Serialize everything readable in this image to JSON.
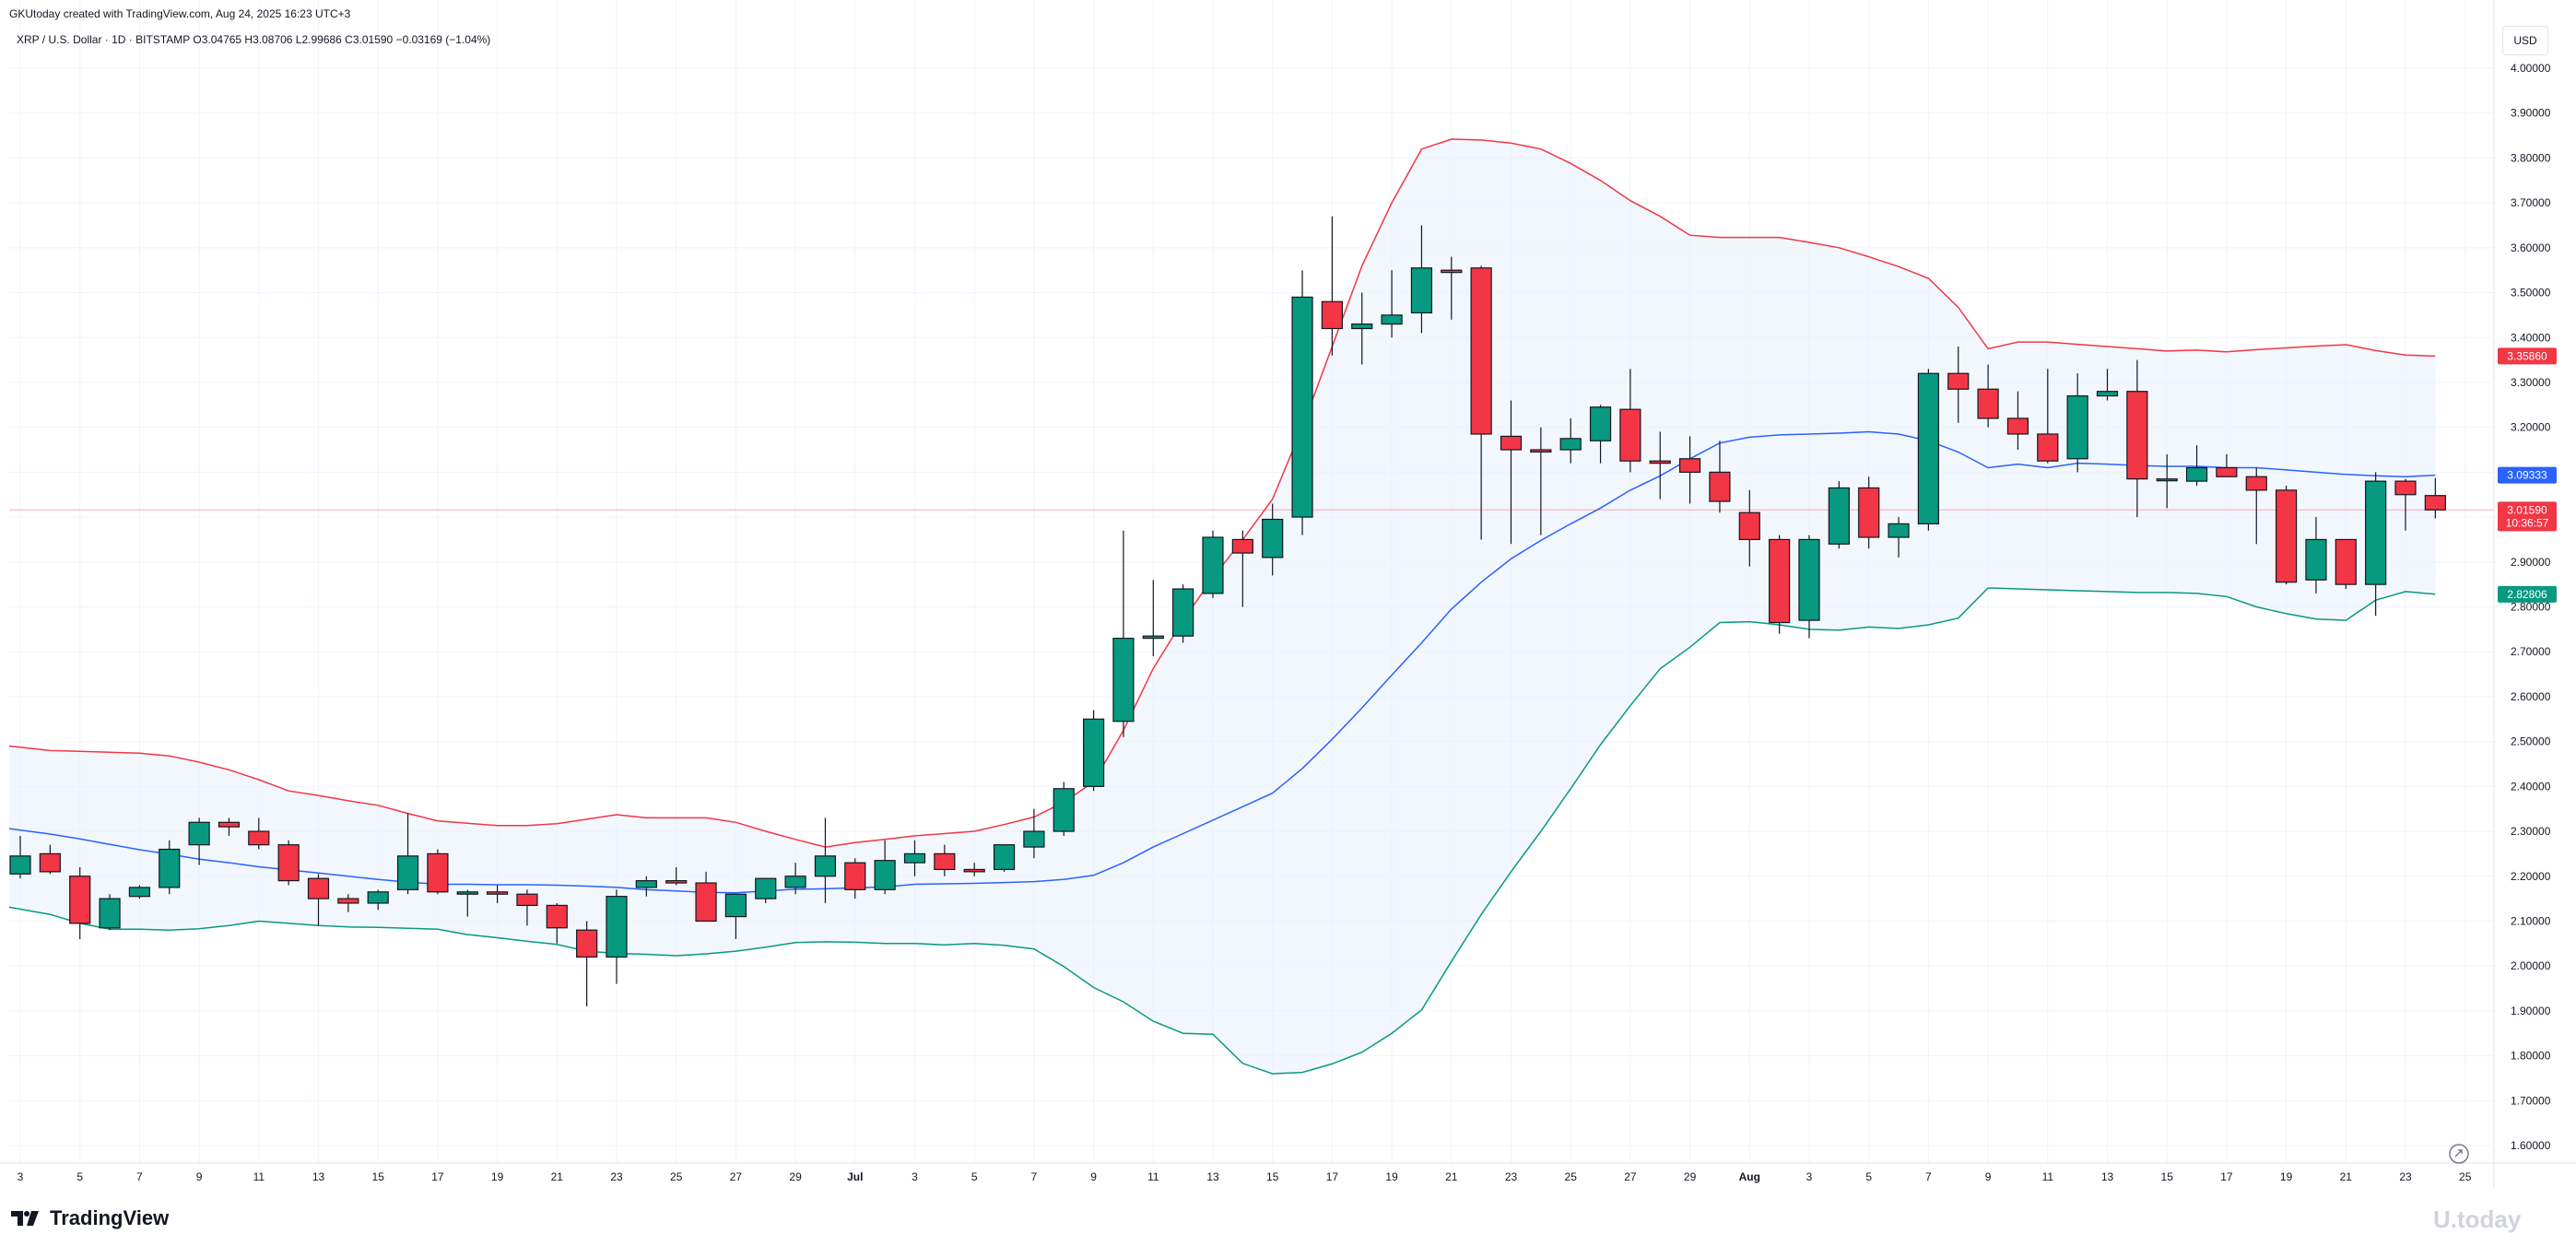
{
  "header": {
    "credit": "GKUtoday created with TradingView.com, Aug 24, 2025 16:23 UTC+3",
    "symbol_line": "XRP / U.S. Dollar · 1D · BITSTAMP   O3.04765  H3.08706  L2.99686  C3.01590  −0.03169 (−1.04%)"
  },
  "currency_button": "USD",
  "footer": {
    "brand": "TradingView",
    "watermark": "U.today"
  },
  "colors": {
    "up": "#089981",
    "down": "#f23645",
    "upper_band": "#f23645",
    "basis": "#2962ff",
    "lower_band": "#089981",
    "band_fill": "#e9f2fb",
    "last_price_line": "#f23645"
  },
  "chart_data": {
    "type": "candlestick",
    "title": "XRP / U.S. Dollar · 1D · BITSTAMP",
    "ylim": [
      1.58,
      4.05
    ],
    "y_ticks": [
      "4.00000",
      "3.90000",
      "3.80000",
      "3.70000",
      "3.60000",
      "3.50000",
      "3.40000",
      "3.30000",
      "3.20000",
      "3.10000",
      "3.00000",
      "2.90000",
      "2.80000",
      "2.70000",
      "2.60000",
      "2.50000",
      "2.40000",
      "2.30000",
      "2.20000",
      "2.10000",
      "2.00000",
      "1.90000",
      "1.80000",
      "1.70000",
      "1.60000"
    ],
    "x_ticks": [
      "3",
      "5",
      "7",
      "9",
      "11",
      "13",
      "15",
      "17",
      "19",
      "21",
      "23",
      "25",
      "27",
      "29",
      "Jul",
      "3",
      "5",
      "7",
      "9",
      "11",
      "13",
      "15",
      "17",
      "19",
      "21",
      "23",
      "25",
      "27",
      "29",
      "Aug",
      "3",
      "5",
      "7",
      "9",
      "11",
      "13",
      "15",
      "17",
      "19",
      "21",
      "23",
      "25"
    ],
    "price_labels": [
      {
        "value": 3.3586,
        "text": "3.35860",
        "color": "#f23645"
      },
      {
        "value": 3.09333,
        "text": "3.09333",
        "color": "#2962ff"
      },
      {
        "value": 3.0159,
        "text": "3.01590",
        "countdown": "10:36:57",
        "color": "#f23645"
      },
      {
        "value": 2.82806,
        "text": "2.82806",
        "color": "#089981"
      }
    ],
    "candles": [
      [
        2.205,
        2.29,
        2.195,
        2.245
      ],
      [
        2.25,
        2.27,
        2.205,
        2.21
      ],
      [
        2.2,
        2.22,
        2.06,
        2.095
      ],
      [
        2.085,
        2.16,
        2.08,
        2.15
      ],
      [
        2.155,
        2.18,
        2.15,
        2.175
      ],
      [
        2.175,
        2.28,
        2.16,
        2.26
      ],
      [
        2.27,
        2.33,
        2.225,
        2.32
      ],
      [
        2.32,
        2.33,
        2.29,
        2.31
      ],
      [
        2.3,
        2.33,
        2.26,
        2.27
      ],
      [
        2.27,
        2.28,
        2.18,
        2.19
      ],
      [
        2.195,
        2.205,
        2.09,
        2.15
      ],
      [
        2.15,
        2.16,
        2.12,
        2.14
      ],
      [
        2.14,
        2.17,
        2.125,
        2.165
      ],
      [
        2.17,
        2.34,
        2.16,
        2.245
      ],
      [
        2.25,
        2.26,
        2.16,
        2.165
      ],
      [
        2.16,
        2.17,
        2.11,
        2.165
      ],
      [
        2.165,
        2.18,
        2.14,
        2.16
      ],
      [
        2.16,
        2.17,
        2.09,
        2.135
      ],
      [
        2.135,
        2.14,
        2.05,
        2.085
      ],
      [
        2.08,
        2.1,
        1.91,
        2.02
      ],
      [
        2.02,
        2.17,
        1.96,
        2.155
      ],
      [
        2.175,
        2.2,
        2.155,
        2.19
      ],
      [
        2.19,
        2.22,
        2.18,
        2.185
      ],
      [
        2.185,
        2.21,
        2.1,
        2.1
      ],
      [
        2.11,
        2.15,
        2.06,
        2.16
      ],
      [
        2.15,
        2.19,
        2.14,
        2.195
      ],
      [
        2.175,
        2.23,
        2.16,
        2.2
      ],
      [
        2.2,
        2.33,
        2.14,
        2.245
      ],
      [
        2.23,
        2.24,
        2.15,
        2.17
      ],
      [
        2.17,
        2.28,
        2.16,
        2.235
      ],
      [
        2.23,
        2.28,
        2.2,
        2.25
      ],
      [
        2.25,
        2.27,
        2.2,
        2.215
      ],
      [
        2.215,
        2.23,
        2.2,
        2.21
      ],
      [
        2.215,
        2.27,
        2.21,
        2.27
      ],
      [
        2.265,
        2.35,
        2.24,
        2.3
      ],
      [
        2.3,
        2.41,
        2.29,
        2.395
      ],
      [
        2.4,
        2.57,
        2.39,
        2.55
      ],
      [
        2.545,
        2.97,
        2.51,
        2.73
      ],
      [
        2.73,
        2.86,
        2.69,
        2.735
      ],
      [
        2.735,
        2.85,
        2.72,
        2.84
      ],
      [
        2.83,
        2.97,
        2.82,
        2.955
      ],
      [
        2.95,
        2.97,
        2.8,
        2.92
      ],
      [
        2.91,
        3.03,
        2.87,
        2.995
      ],
      [
        3.0,
        3.55,
        2.96,
        3.49
      ],
      [
        3.48,
        3.67,
        3.36,
        3.42
      ],
      [
        3.42,
        3.5,
        3.34,
        3.43
      ],
      [
        3.43,
        3.55,
        3.4,
        3.45
      ],
      [
        3.455,
        3.65,
        3.41,
        3.555
      ],
      [
        3.55,
        3.58,
        3.44,
        3.545
      ],
      [
        3.555,
        3.56,
        2.95,
        3.185
      ],
      [
        3.18,
        3.26,
        2.94,
        3.15
      ],
      [
        3.15,
        3.2,
        2.96,
        3.145
      ],
      [
        3.15,
        3.22,
        3.12,
        3.175
      ],
      [
        3.17,
        3.25,
        3.12,
        3.245
      ],
      [
        3.24,
        3.33,
        3.1,
        3.125
      ],
      [
        3.125,
        3.19,
        3.04,
        3.12
      ],
      [
        3.13,
        3.18,
        3.03,
        3.1
      ],
      [
        3.1,
        3.17,
        3.01,
        3.035
      ],
      [
        3.01,
        3.06,
        2.89,
        2.95
      ],
      [
        2.95,
        2.96,
        2.74,
        2.765
      ],
      [
        2.77,
        2.96,
        2.73,
        2.95
      ],
      [
        2.94,
        3.08,
        2.93,
        3.065
      ],
      [
        3.065,
        3.09,
        2.93,
        2.955
      ],
      [
        2.955,
        3.0,
        2.91,
        2.985
      ],
      [
        2.985,
        3.33,
        2.97,
        3.32
      ],
      [
        3.32,
        3.38,
        3.21,
        3.285
      ],
      [
        3.285,
        3.34,
        3.2,
        3.22
      ],
      [
        3.22,
        3.28,
        3.15,
        3.185
      ],
      [
        3.185,
        3.33,
        3.12,
        3.125
      ],
      [
        3.13,
        3.32,
        3.1,
        3.27
      ],
      [
        3.27,
        3.33,
        3.26,
        3.28
      ],
      [
        3.28,
        3.35,
        3.0,
        3.085
      ],
      [
        3.085,
        3.14,
        3.02,
        3.085
      ],
      [
        3.08,
        3.16,
        3.07,
        3.11
      ],
      [
        3.11,
        3.14,
        3.09,
        3.09
      ],
      [
        3.09,
        3.11,
        2.94,
        3.06
      ],
      [
        3.06,
        3.07,
        2.85,
        2.855
      ],
      [
        2.86,
        3.0,
        2.83,
        2.95
      ],
      [
        2.95,
        2.95,
        2.84,
        2.85
      ],
      [
        2.85,
        3.1,
        2.78,
        3.08
      ],
      [
        3.08,
        3.085,
        2.97,
        3.05
      ],
      [
        3.048,
        3.087,
        2.997,
        3.016
      ]
    ],
    "upper_band": [
      2.49,
      2.48,
      2.478,
      2.476,
      2.474,
      2.468,
      2.454,
      2.437,
      2.415,
      2.39,
      2.38,
      2.368,
      2.358,
      2.34,
      2.323,
      2.318,
      2.313,
      2.313,
      2.317,
      2.327,
      2.337,
      2.33,
      2.33,
      2.33,
      2.32,
      2.3,
      2.282,
      2.265,
      2.275,
      2.282,
      2.29,
      2.295,
      2.3,
      2.315,
      2.332,
      2.365,
      2.41,
      2.525,
      2.663,
      2.77,
      2.865,
      2.95,
      3.04,
      3.2,
      3.38,
      3.56,
      3.7,
      3.82,
      3.842,
      3.84,
      3.833,
      3.82,
      3.788,
      3.75,
      3.705,
      3.67,
      3.628,
      3.623,
      3.623,
      3.623,
      3.612,
      3.6,
      3.58,
      3.558,
      3.532,
      3.467,
      3.375,
      3.39,
      3.39,
      3.385,
      3.38,
      3.375,
      3.37,
      3.372,
      3.368,
      3.373,
      3.377,
      3.381,
      3.384,
      3.371,
      3.361,
      3.3586
    ],
    "basis": [
      2.306,
      2.294,
      2.283,
      2.271,
      2.259,
      2.249,
      2.238,
      2.23,
      2.221,
      2.214,
      2.207,
      2.2,
      2.193,
      2.187,
      2.182,
      2.182,
      2.181,
      2.181,
      2.18,
      2.178,
      2.175,
      2.17,
      2.167,
      2.164,
      2.163,
      2.167,
      2.171,
      2.172,
      2.174,
      2.176,
      2.182,
      2.183,
      2.184,
      2.186,
      2.188,
      2.193,
      2.202,
      2.23,
      2.265,
      2.295,
      2.325,
      2.355,
      2.385,
      2.44,
      2.505,
      2.575,
      2.648,
      2.72,
      2.795,
      2.855,
      2.907,
      2.948,
      2.985,
      3.02,
      3.06,
      3.092,
      3.13,
      3.165,
      3.178,
      3.183,
      3.185,
      3.187,
      3.19,
      3.185,
      3.17,
      3.145,
      3.11,
      3.118,
      3.11,
      3.12,
      3.118,
      3.115,
      3.113,
      3.113,
      3.11,
      3.11,
      3.105,
      3.1,
      3.095,
      3.092,
      3.09,
      3.09333
    ],
    "lower_band": [
      2.131,
      2.115,
      2.095,
      2.082,
      2.082,
      2.08,
      2.083,
      2.09,
      2.1,
      2.095,
      2.09,
      2.087,
      2.086,
      2.084,
      2.082,
      2.07,
      2.063,
      2.055,
      2.048,
      2.033,
      2.028,
      2.026,
      2.023,
      2.027,
      2.033,
      2.042,
      2.052,
      2.054,
      2.053,
      2.05,
      2.05,
      2.047,
      2.05,
      2.046,
      2.038,
      1.999,
      1.952,
      1.92,
      1.877,
      1.85,
      1.848,
      1.783,
      1.76,
      1.763,
      1.782,
      1.808,
      1.85,
      1.902,
      2.01,
      2.115,
      2.21,
      2.3,
      2.395,
      2.493,
      2.58,
      2.662,
      2.71,
      2.765,
      2.767,
      2.76,
      2.75,
      2.748,
      2.755,
      2.752,
      2.76,
      2.775,
      2.842,
      2.84,
      2.838,
      2.836,
      2.834,
      2.832,
      2.832,
      2.83,
      2.823,
      2.8,
      2.785,
      2.773,
      2.77,
      2.815,
      2.834,
      2.82806
    ]
  }
}
